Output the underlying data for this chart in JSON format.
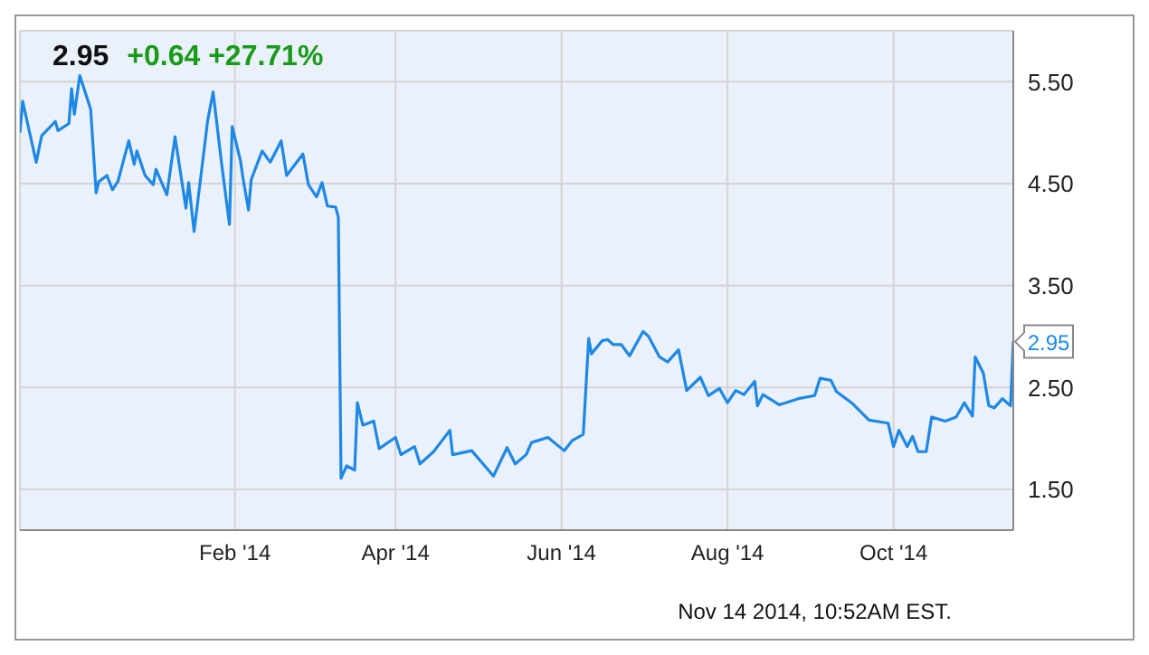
{
  "chart_data": {
    "type": "line",
    "title": "2.95",
    "subtitle": "+0.64 +27.71%",
    "annotations": [
      {
        "text": "2.95",
        "x": "2014-11-14",
        "y": 2.95
      },
      "Nov 14 2014, 10:52AM EST."
    ],
    "xlim": [
      "2013-11-14",
      "2014-11-14"
    ],
    "xticks": [
      {
        "value": "2014-02-01",
        "label": "Feb '14"
      },
      {
        "value": "2014-04-01",
        "label": "Apr '14"
      },
      {
        "value": "2014-06-01",
        "label": "Jun '14"
      },
      {
        "value": "2014-08-01",
        "label": "Aug '14"
      },
      {
        "value": "2014-10-01",
        "label": "Oct '14"
      }
    ],
    "ylim": [
      1.1,
      6.0
    ],
    "yticks": [
      {
        "value": 1.5,
        "label": "1.50"
      },
      {
        "value": 2.5,
        "label": "2.50"
      },
      {
        "value": 3.5,
        "label": "3.50"
      },
      {
        "value": 4.5,
        "label": "4.50"
      },
      {
        "value": 5.5,
        "label": "5.50"
      }
    ],
    "grid": true,
    "marker": "none",
    "line_style": "solid",
    "x": [
      "2013-11-14",
      "2013-11-15",
      "2013-11-20",
      "2013-11-22",
      "2013-11-27",
      "2013-11-28",
      "2013-12-02",
      "2013-12-03",
      "2013-12-04",
      "2013-12-06",
      "2013-12-10",
      "2013-12-12",
      "2013-12-13",
      "2013-12-16",
      "2013-12-18",
      "2013-12-20",
      "2013-12-24",
      "2013-12-26",
      "2013-12-27",
      "2013-12-30",
      "2014-01-02",
      "2014-01-03",
      "2014-01-07",
      "2014-01-10",
      "2014-01-14",
      "2014-01-15",
      "2014-01-17",
      "2014-01-22",
      "2014-01-24",
      "2014-01-27",
      "2014-01-30",
      "2014-01-31",
      "2014-02-03",
      "2014-02-04",
      "2014-02-06",
      "2014-02-07",
      "2014-02-11",
      "2014-02-14",
      "2014-02-18",
      "2014-02-20",
      "2014-02-26",
      "2014-02-28",
      "2014-03-03",
      "2014-03-05",
      "2014-03-07",
      "2014-03-10",
      "2014-03-11",
      "2014-03-12",
      "2014-03-14",
      "2014-03-17",
      "2014-03-18",
      "2014-03-20",
      "2014-03-24",
      "2014-03-26",
      "2014-04-01",
      "2014-04-03",
      "2014-04-08",
      "2014-04-10",
      "2014-04-15",
      "2014-04-21",
      "2014-04-22",
      "2014-04-29",
      "2014-05-07",
      "2014-05-12",
      "2014-05-15",
      "2014-05-19",
      "2014-05-21",
      "2014-05-27",
      "2014-06-02",
      "2014-06-05",
      "2014-06-09",
      "2014-06-11",
      "2014-06-12",
      "2014-06-16",
      "2014-06-18",
      "2014-06-20",
      "2014-06-23",
      "2014-06-26",
      "2014-07-01",
      "2014-07-03",
      "2014-07-07",
      "2014-07-10",
      "2014-07-14",
      "2014-07-17",
      "2014-07-22",
      "2014-07-25",
      "2014-07-29",
      "2014-08-01",
      "2014-08-04",
      "2014-08-07",
      "2014-08-11",
      "2014-08-12",
      "2014-08-14",
      "2014-08-20",
      "2014-08-27",
      "2014-09-02",
      "2014-09-04",
      "2014-09-08",
      "2014-09-10",
      "2014-09-16",
      "2014-09-22",
      "2014-09-29",
      "2014-10-01",
      "2014-10-03",
      "2014-10-06",
      "2014-10-08",
      "2014-10-10",
      "2014-10-13",
      "2014-10-15",
      "2014-10-20",
      "2014-10-24",
      "2014-10-27",
      "2014-10-30",
      "2014-10-31",
      "2014-11-03",
      "2014-11-05",
      "2014-11-07",
      "2014-11-10",
      "2014-11-13",
      "2014-11-14"
    ],
    "series": [
      {
        "color": "#1e88e5",
        "values": [
          5.0,
          5.31,
          4.71,
          4.97,
          5.11,
          5.02,
          5.09,
          5.43,
          5.18,
          5.56,
          5.23,
          4.41,
          4.52,
          4.58,
          4.44,
          4.52,
          4.92,
          4.69,
          4.82,
          4.58,
          4.49,
          4.64,
          4.39,
          4.96,
          4.26,
          4.51,
          4.03,
          5.12,
          5.4,
          4.72,
          4.1,
          5.06,
          4.73,
          4.55,
          4.24,
          4.54,
          4.82,
          4.71,
          4.92,
          4.58,
          4.79,
          4.49,
          4.37,
          4.51,
          4.28,
          4.27,
          4.17,
          1.61,
          1.73,
          1.69,
          2.35,
          2.13,
          2.17,
          1.9,
          2.01,
          1.84,
          1.92,
          1.75,
          1.87,
          2.08,
          1.84,
          1.88,
          1.63,
          1.91,
          1.75,
          1.84,
          1.96,
          2.01,
          1.88,
          1.98,
          2.04,
          2.98,
          2.83,
          2.96,
          2.97,
          2.92,
          2.92,
          2.81,
          3.05,
          3.0,
          2.8,
          2.75,
          2.87,
          2.47,
          2.6,
          2.42,
          2.49,
          2.35,
          2.47,
          2.43,
          2.56,
          2.32,
          2.43,
          2.33,
          2.39,
          2.42,
          2.59,
          2.57,
          2.46,
          2.34,
          2.18,
          2.15,
          1.92,
          2.08,
          1.92,
          2.02,
          1.87,
          1.87,
          2.21,
          2.17,
          2.21,
          2.35,
          2.22,
          2.8,
          2.64,
          2.32,
          2.3,
          2.39,
          2.32,
          2.95
        ]
      }
    ]
  }
}
